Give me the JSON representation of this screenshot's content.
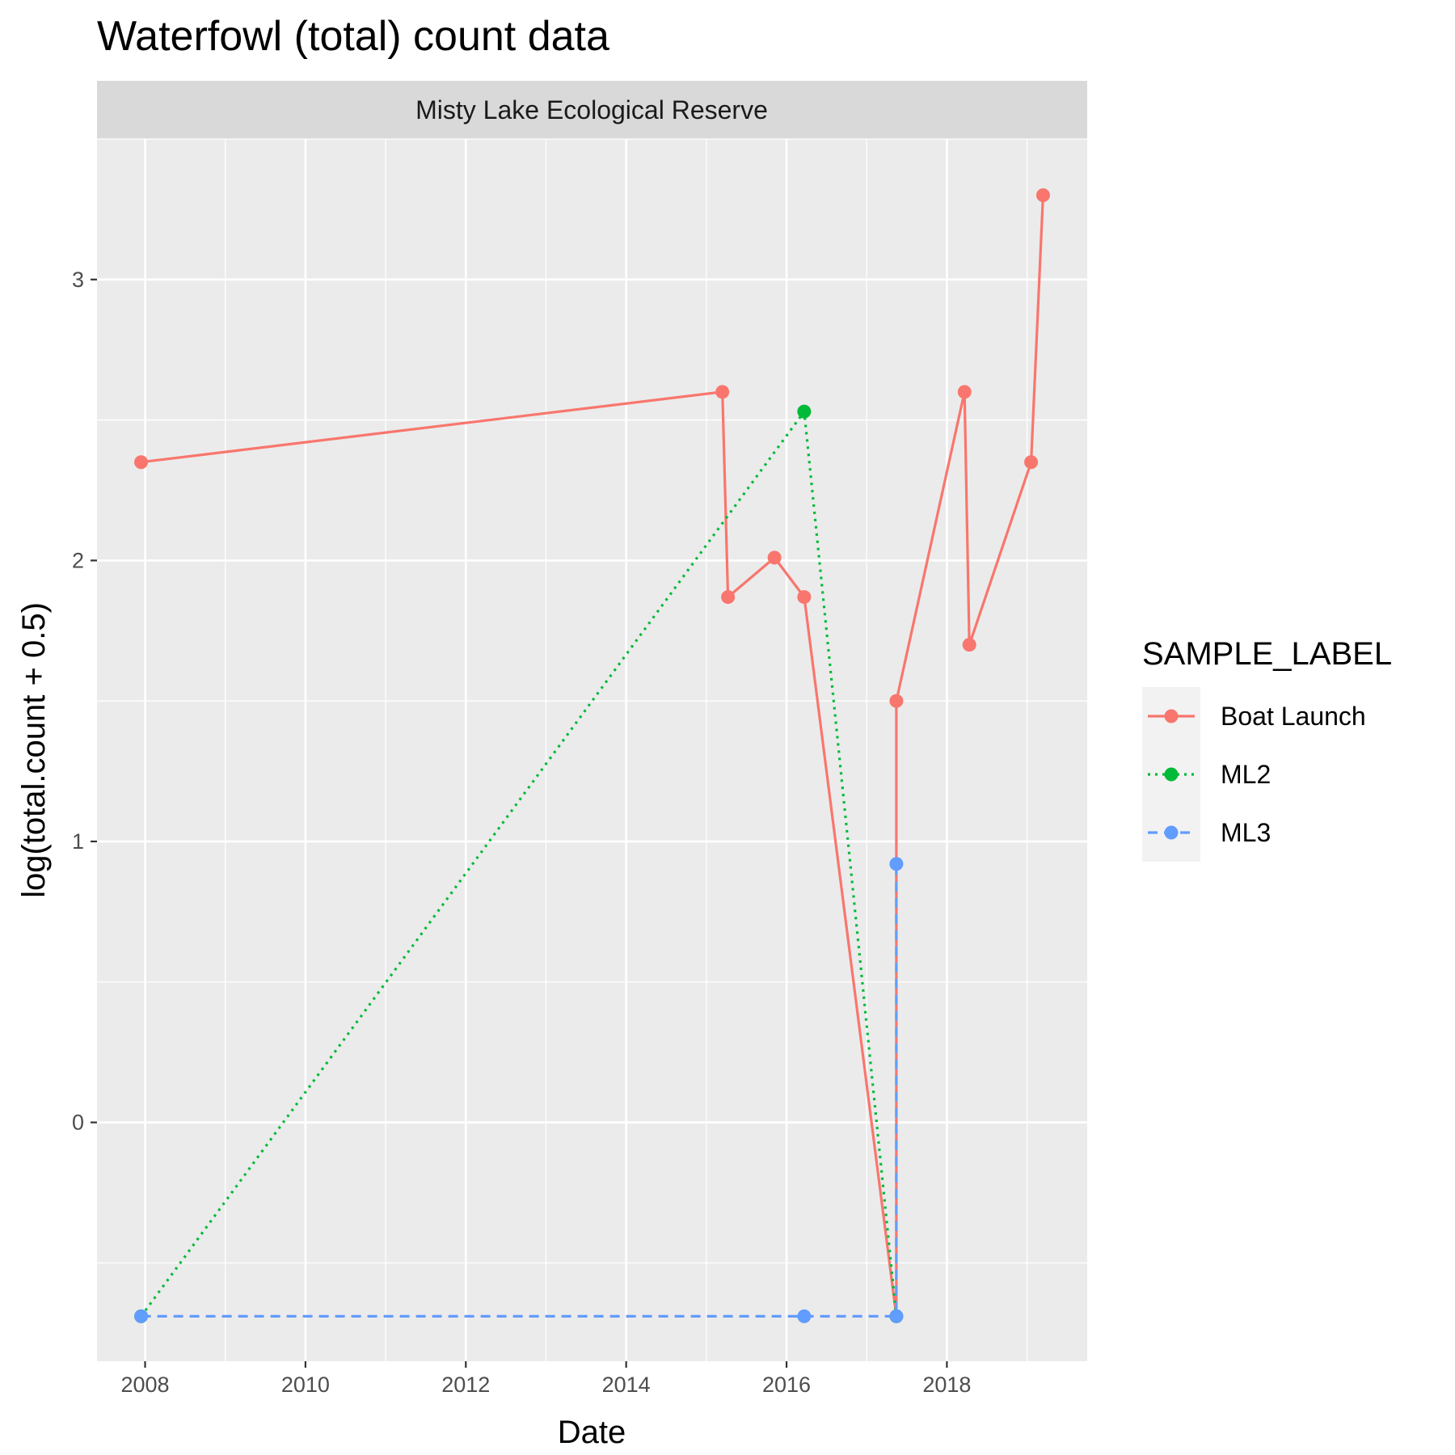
{
  "chart_data": {
    "type": "line",
    "title": "Waterfowl (total) count data",
    "facet_label": "Misty Lake Ecological Reserve",
    "xlabel": "Date",
    "ylabel": "log(total.count + 0.5)",
    "x_ticks": [
      2008,
      2010,
      2012,
      2014,
      2016,
      2018
    ],
    "y_ticks": [
      0,
      1,
      2,
      3
    ],
    "xlim": [
      2007.4,
      2019.75
    ],
    "ylim": [
      -0.85,
      3.5
    ],
    "grid": true,
    "legend": {
      "title": "SAMPLE_LABEL",
      "position": "right"
    },
    "series": [
      {
        "name": "Boat Launch",
        "color": "#F8766D",
        "dash": "solid",
        "points": [
          [
            2007.95,
            2.35
          ],
          [
            2015.2,
            2.6
          ],
          [
            2015.27,
            1.87
          ],
          [
            2015.85,
            2.01
          ],
          [
            2016.22,
            1.87
          ],
          [
            2017.37,
            -0.69
          ],
          [
            2017.37,
            1.5
          ],
          [
            2018.22,
            2.6
          ],
          [
            2018.28,
            1.7
          ],
          [
            2019.05,
            2.35
          ],
          [
            2019.2,
            3.3
          ]
        ]
      },
      {
        "name": "ML2",
        "color": "#00BA38",
        "dash": "dotted",
        "points": [
          [
            2007.95,
            -0.69
          ],
          [
            2016.22,
            2.53
          ],
          [
            2017.37,
            -0.69
          ]
        ]
      },
      {
        "name": "ML3",
        "color": "#619CFF",
        "dash": "dashed",
        "points": [
          [
            2007.95,
            -0.69
          ],
          [
            2016.22,
            -0.69
          ],
          [
            2017.37,
            -0.69
          ],
          [
            2017.37,
            0.92
          ]
        ]
      }
    ]
  }
}
